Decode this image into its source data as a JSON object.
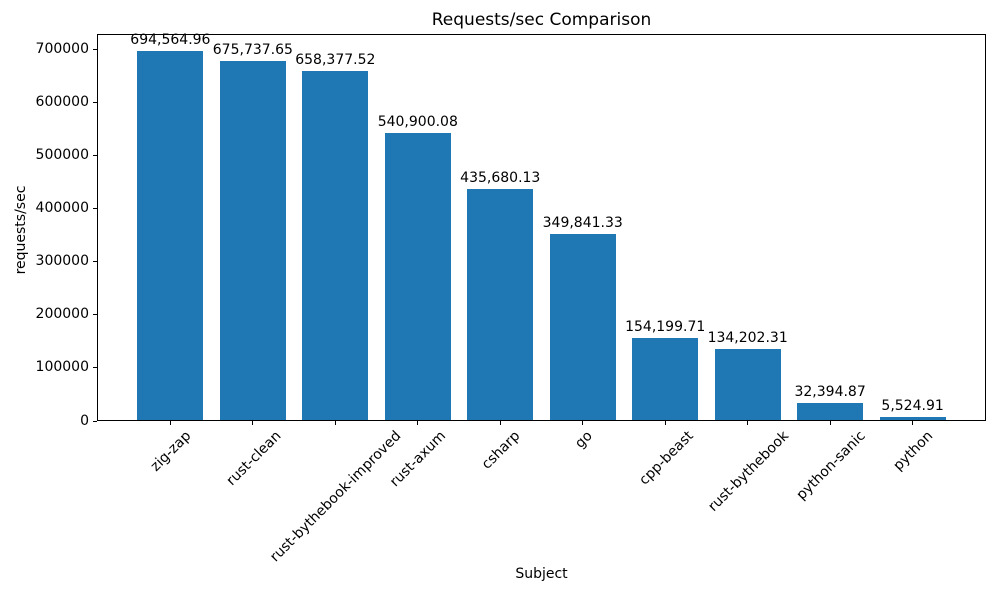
{
  "figure": {
    "title": "Requests/sec Comparison",
    "xlabel": "Subject",
    "ylabel": "requests/sec"
  },
  "chart_data": {
    "type": "bar",
    "title": "Requests/sec Comparison",
    "xlabel": "Subject",
    "ylabel": "requests/sec",
    "categories": [
      "zig-zap",
      "rust-clean",
      "rust-bythebook-improved",
      "rust-axum",
      "csharp",
      "go",
      "cpp-beast",
      "rust-bythebook",
      "python-sanic",
      "python"
    ],
    "values": [
      694564.96,
      675737.65,
      658377.52,
      540900.08,
      435680.13,
      349841.33,
      154199.71,
      134202.31,
      32394.87,
      5524.91
    ],
    "value_labels": [
      "694,564.96",
      "675,737.65",
      "658,377.52",
      "540,900.08",
      "435,680.13",
      "349,841.33",
      "154,199.71",
      "134,202.31",
      "32,394.87",
      "5,524.91"
    ],
    "yticks": [
      0,
      100000,
      200000,
      300000,
      400000,
      500000,
      600000,
      700000
    ],
    "ylim": [
      0,
      729293
    ],
    "xlim": [
      -0.89,
      9.89
    ],
    "bar_width_units": 0.8,
    "x_tick_rotation_deg": 45,
    "bar_color": "#1f77b4",
    "axis_color": "#000000",
    "text_color": "#000000",
    "background_color": "#ffffff",
    "grid": false,
    "legend": null
  }
}
